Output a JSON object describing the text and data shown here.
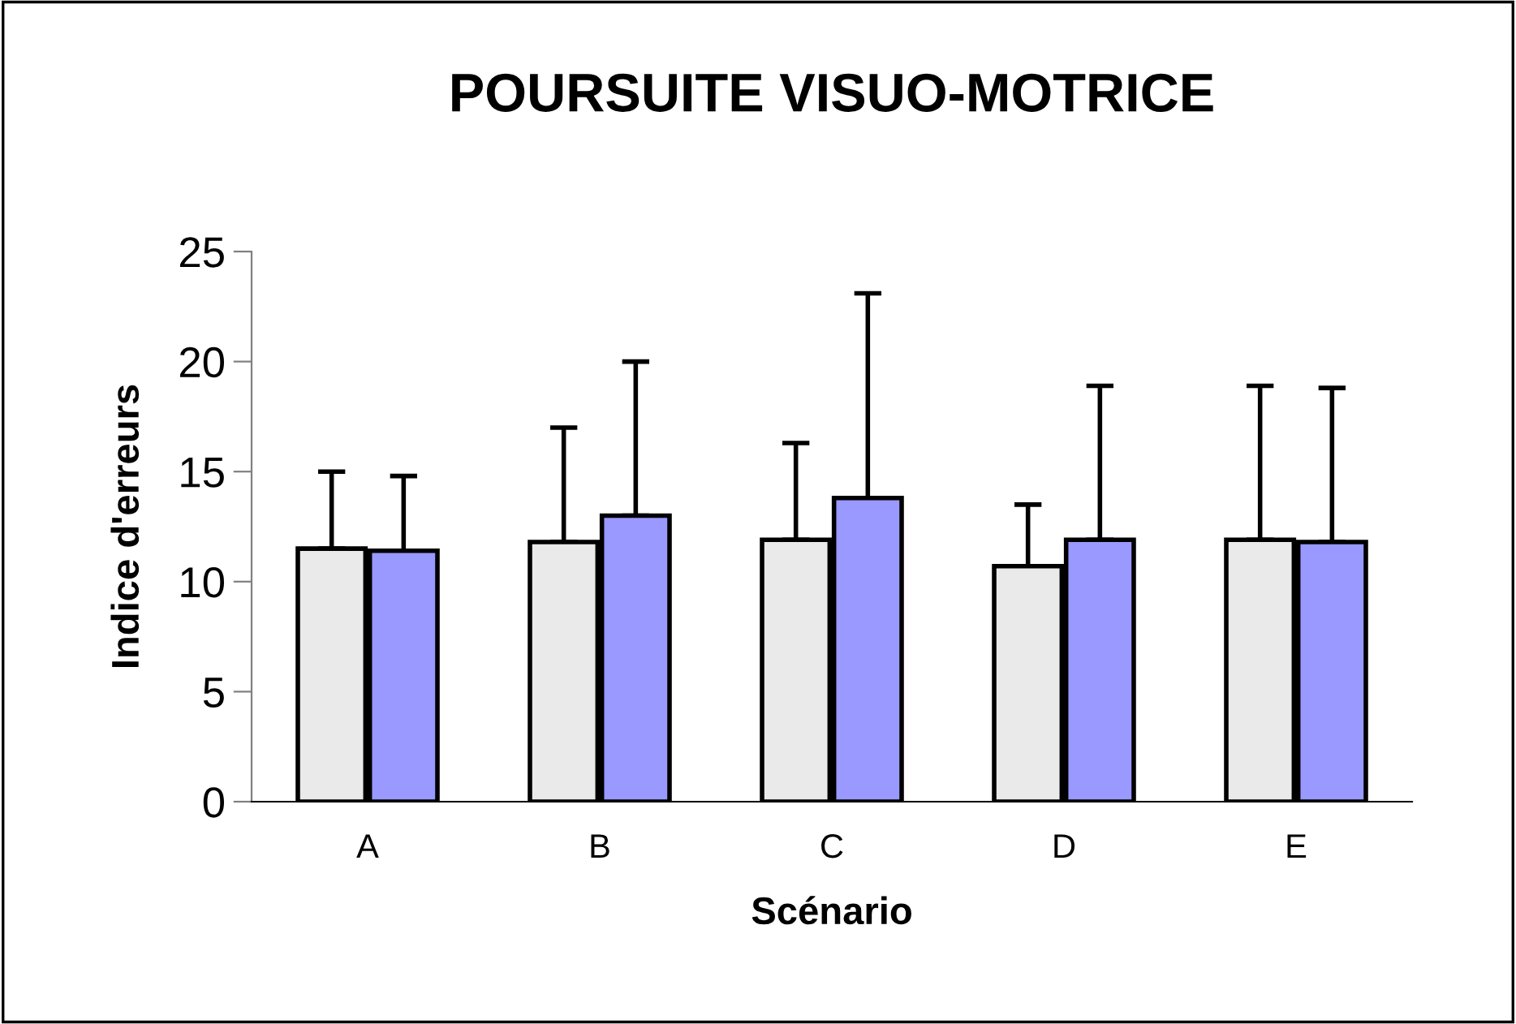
{
  "chart_data": {
    "type": "bar",
    "title": "POURSUITE VISUO-MOTRICE",
    "xlabel": "Scénario",
    "ylabel": "Indice d'erreurs",
    "categories": [
      "A",
      "B",
      "C",
      "D",
      "E"
    ],
    "series": [
      {
        "color": "#eaeaea",
        "values": [
          11.5,
          11.8,
          11.9,
          10.7,
          11.9
        ],
        "errors": [
          [
            11.5,
            15.0
          ],
          [
            11.8,
            17.0
          ],
          [
            11.9,
            16.3
          ],
          [
            10.7,
            13.5
          ],
          [
            11.9,
            18.9
          ]
        ]
      },
      {
        "color": "#9999ff",
        "values": [
          11.4,
          13.0,
          13.8,
          11.9,
          11.8
        ],
        "errors": [
          [
            11.4,
            14.8
          ],
          [
            13.0,
            20.0
          ],
          [
            13.8,
            23.1
          ],
          [
            11.9,
            18.9
          ],
          [
            11.8,
            18.8
          ]
        ]
      }
    ],
    "ylim": [
      0,
      25
    ],
    "yticks": [
      0,
      5,
      10,
      15,
      20,
      25
    ],
    "grid": false,
    "legend": false
  }
}
